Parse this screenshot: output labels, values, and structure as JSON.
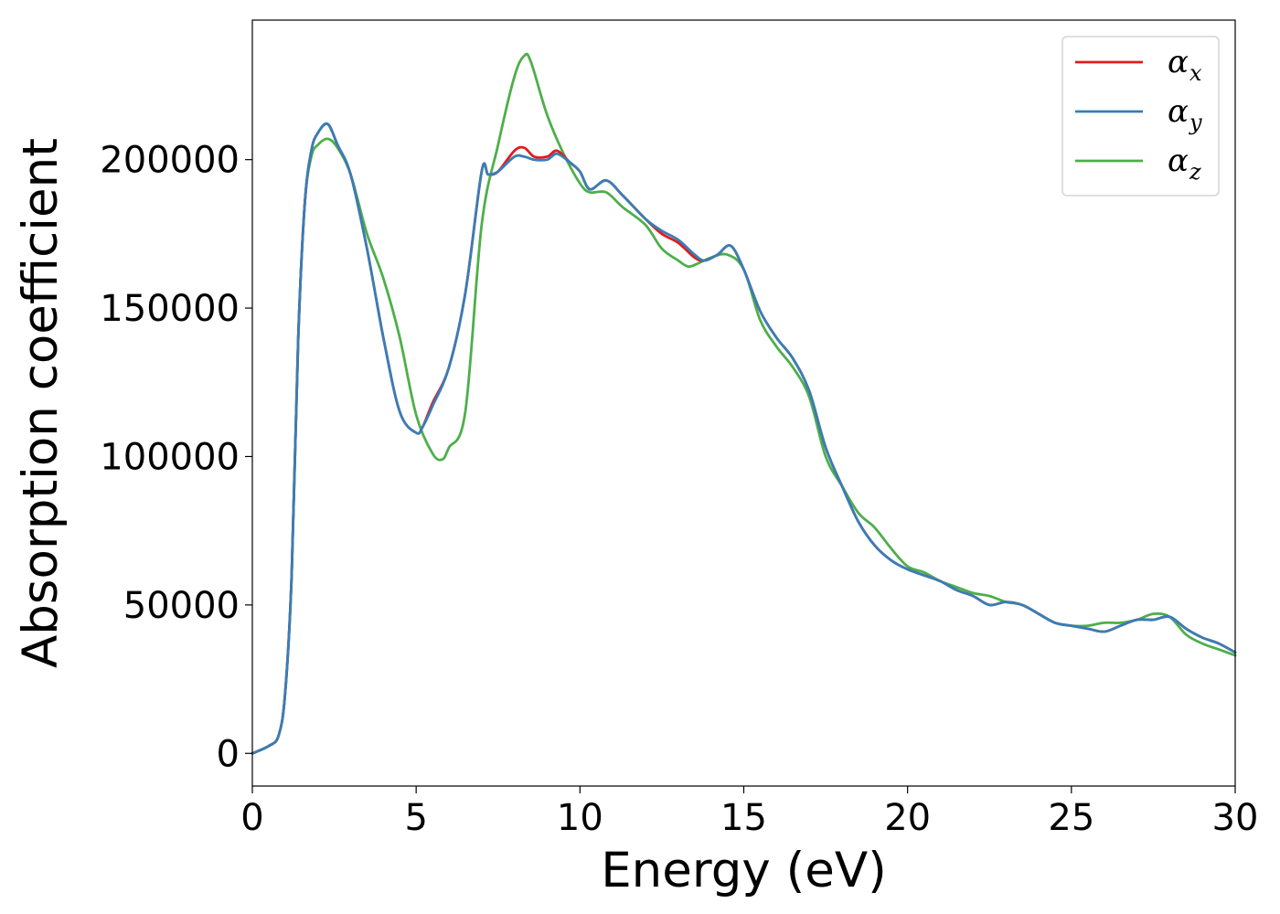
{
  "chart_data": {
    "type": "line",
    "title": "",
    "xlabel": "Energy (eV)",
    "ylabel": "Absorption coefficient",
    "xlim": [
      0,
      30
    ],
    "ylim": [
      -11000,
      247000
    ],
    "xticks": [
      0,
      5,
      10,
      15,
      20,
      25,
      30
    ],
    "yticks": [
      0,
      50000,
      100000,
      150000,
      200000
    ],
    "grid": false,
    "legend_position": "top-right",
    "series": [
      {
        "name": "α_x",
        "legend_base": "α",
        "legend_sub": "x",
        "color": "#e41a1c",
        "x": [
          0,
          0.5,
          0.8,
          1.0,
          1.2,
          1.4,
          1.6,
          1.8,
          2.0,
          2.3,
          2.6,
          3.0,
          3.5,
          4.0,
          4.5,
          5.0,
          5.2,
          5.5,
          6.0,
          6.5,
          7.0,
          7.2,
          7.5,
          8.0,
          8.3,
          8.6,
          9.0,
          9.3,
          9.7,
          10.0,
          10.3,
          10.8,
          11.3,
          12.0,
          12.5,
          13.0,
          13.5,
          13.8,
          14.2,
          14.6,
          15.0,
          15.5,
          16.0,
          16.5,
          17.0,
          17.5,
          18.0,
          18.5,
          19.0,
          19.5,
          20.0,
          20.5,
          21.0,
          21.5,
          22.0,
          22.5,
          23.0,
          23.5,
          24.0,
          24.5,
          25.0,
          25.5,
          26.0,
          26.5,
          27.0,
          27.5,
          28.0,
          28.5,
          29.0,
          29.5,
          30.0
        ],
        "values": [
          0,
          2500,
          6000,
          20000,
          60000,
          140000,
          185000,
          203000,
          209000,
          212000,
          205000,
          195000,
          170000,
          140000,
          115000,
          108000,
          110000,
          118000,
          130000,
          155000,
          196000,
          195000,
          196000,
          203000,
          204000,
          201000,
          201000,
          203000,
          199000,
          196000,
          190000,
          193000,
          188000,
          180000,
          175000,
          172000,
          167000,
          166000,
          168000,
          171000,
          163000,
          149000,
          140000,
          133000,
          122000,
          103000,
          90000,
          78000,
          70000,
          65000,
          62000,
          60000,
          58000,
          55000,
          53000,
          50000,
          51000,
          50000,
          47000,
          44000,
          43000,
          42000,
          41000,
          43000,
          45000,
          45000,
          46000,
          42000,
          39000,
          37000,
          34000
        ]
      },
      {
        "name": "α_y",
        "legend_base": "α",
        "legend_sub": "y",
        "color": "#377eb8",
        "x": [
          0,
          0.5,
          0.8,
          1.0,
          1.2,
          1.4,
          1.6,
          1.8,
          2.0,
          2.3,
          2.6,
          3.0,
          3.5,
          4.0,
          4.5,
          5.0,
          5.2,
          5.5,
          6.0,
          6.5,
          7.0,
          7.2,
          7.5,
          8.0,
          8.3,
          8.6,
          9.0,
          9.3,
          9.7,
          10.0,
          10.3,
          10.8,
          11.3,
          12.0,
          12.5,
          13.0,
          13.5,
          13.8,
          14.2,
          14.6,
          15.0,
          15.5,
          16.0,
          16.5,
          17.0,
          17.5,
          18.0,
          18.5,
          19.0,
          19.5,
          20.0,
          20.5,
          21.0,
          21.5,
          22.0,
          22.5,
          23.0,
          23.5,
          24.0,
          24.5,
          25.0,
          25.5,
          26.0,
          26.5,
          27.0,
          27.5,
          28.0,
          28.5,
          29.0,
          29.5,
          30.0
        ],
        "values": [
          0,
          2500,
          6000,
          20000,
          60000,
          140000,
          185000,
          203000,
          209000,
          212000,
          205000,
          195000,
          170000,
          140000,
          115000,
          108000,
          110000,
          117000,
          130000,
          155000,
          196000,
          195000,
          196000,
          201000,
          201000,
          200000,
          200000,
          202000,
          199000,
          196000,
          190000,
          193000,
          188000,
          180000,
          176000,
          173000,
          168000,
          166000,
          168000,
          171000,
          163000,
          149000,
          140000,
          133000,
          122000,
          103000,
          90000,
          78000,
          70000,
          65000,
          62000,
          60000,
          58000,
          55000,
          53000,
          50000,
          51000,
          50000,
          47000,
          44000,
          43000,
          42000,
          41000,
          43000,
          45000,
          45000,
          46000,
          42000,
          39000,
          37000,
          34000
        ]
      },
      {
        "name": "α_z",
        "legend_base": "α",
        "legend_sub": "z",
        "color": "#4daf4a",
        "x": [
          0,
          0.5,
          0.8,
          1.0,
          1.2,
          1.4,
          1.6,
          1.8,
          2.0,
          2.3,
          2.6,
          3.0,
          3.5,
          4.0,
          4.5,
          5.0,
          5.5,
          5.8,
          6.0,
          6.5,
          7.0,
          7.5,
          8.0,
          8.3,
          8.5,
          9.0,
          9.5,
          10.0,
          10.3,
          10.8,
          11.3,
          12.0,
          12.5,
          13.0,
          13.3,
          13.6,
          14.0,
          14.5,
          15.0,
          15.5,
          16.0,
          16.5,
          17.0,
          17.5,
          18.0,
          18.5,
          19.0,
          19.5,
          20.0,
          20.5,
          21.0,
          21.5,
          22.0,
          22.5,
          23.0,
          23.5,
          24.0,
          24.5,
          25.0,
          25.5,
          26.0,
          26.5,
          27.0,
          27.5,
          28.0,
          28.5,
          29.0,
          29.5,
          30.0
        ],
        "values": [
          0,
          2500,
          6000,
          20000,
          60000,
          140000,
          185000,
          201000,
          205000,
          207000,
          204000,
          195000,
          175000,
          160000,
          140000,
          114000,
          101000,
          99000,
          103000,
          115000,
          178000,
          205000,
          228000,
          235000,
          233000,
          215000,
          202000,
          192000,
          189000,
          189000,
          184000,
          178000,
          170000,
          166000,
          164000,
          165000,
          167000,
          168000,
          163000,
          146000,
          137000,
          130000,
          120000,
          100000,
          90000,
          81000,
          76000,
          69000,
          63000,
          61000,
          58000,
          56000,
          54000,
          53000,
          51000,
          50000,
          47000,
          44000,
          43000,
          43000,
          44000,
          44000,
          45000,
          47000,
          46000,
          40000,
          37000,
          35000,
          33000
        ]
      }
    ]
  }
}
